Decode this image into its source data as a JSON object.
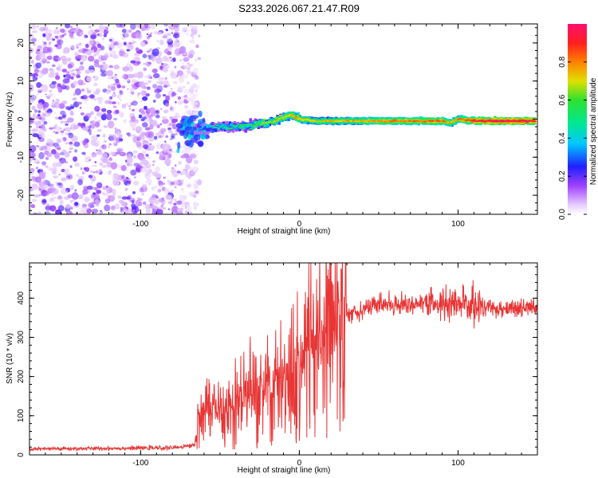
{
  "title": "S233.2026.067.21.47.R09",
  "chart_data": [
    {
      "type": "heatmap",
      "name": "spectrogram",
      "xlabel": "Height of straight line (km)",
      "ylabel": "Frequency (Hz)",
      "xlim": [
        -170,
        150
      ],
      "ylim": [
        -25,
        25
      ],
      "xticks": [
        -100,
        0,
        100
      ],
      "yticks": [
        -20,
        -10,
        0,
        10,
        20
      ],
      "colorbar": {
        "label": "Normalized spectral amplitude",
        "range": [
          0,
          1
        ],
        "ticks": [
          0.0,
          0.2,
          0.4,
          0.6,
          0.8
        ]
      },
      "signal_trace": {
        "description_points_x": [
          -72,
          -60,
          -50,
          -40,
          -30,
          -20,
          -10,
          -5,
          0,
          10,
          50,
          90,
          95,
          100,
          110,
          120,
          148
        ],
        "description_points_y": [
          -3,
          -2.5,
          -2,
          -2,
          -1.5,
          -1,
          0.5,
          1,
          0,
          -0.5,
          -0.5,
          -0.5,
          -1,
          0,
          -0.5,
          -0.5,
          -0.5
        ],
        "amplitude": [
          0.2,
          0.35,
          0.4,
          0.45,
          0.5,
          0.6,
          0.65,
          0.7,
          0.7,
          0.65,
          0.75,
          0.8,
          0.7,
          0.75,
          0.85,
          0.9,
          0.9
        ]
      },
      "noise_region_x": [
        -170,
        -75
      ]
    },
    {
      "type": "line",
      "name": "snr",
      "xlabel": "Height of straight line (km)",
      "ylabel": "SNR (10 * v/v)",
      "xlim": [
        -170,
        150
      ],
      "ylim": [
        0,
        490
      ],
      "xticks": [
        -100,
        0,
        100
      ],
      "yticks": [
        0,
        100,
        200,
        300,
        400
      ],
      "color": "#e83535",
      "envelope_x": [
        -170,
        -80,
        -66,
        -62,
        -55,
        -40,
        -20,
        -10,
        0,
        10,
        20,
        30,
        50,
        80,
        100,
        120,
        150
      ],
      "envelope_y": [
        15,
        18,
        25,
        120,
        110,
        140,
        170,
        200,
        240,
        300,
        340,
        360,
        385,
        385,
        385,
        375,
        375
      ]
    }
  ]
}
